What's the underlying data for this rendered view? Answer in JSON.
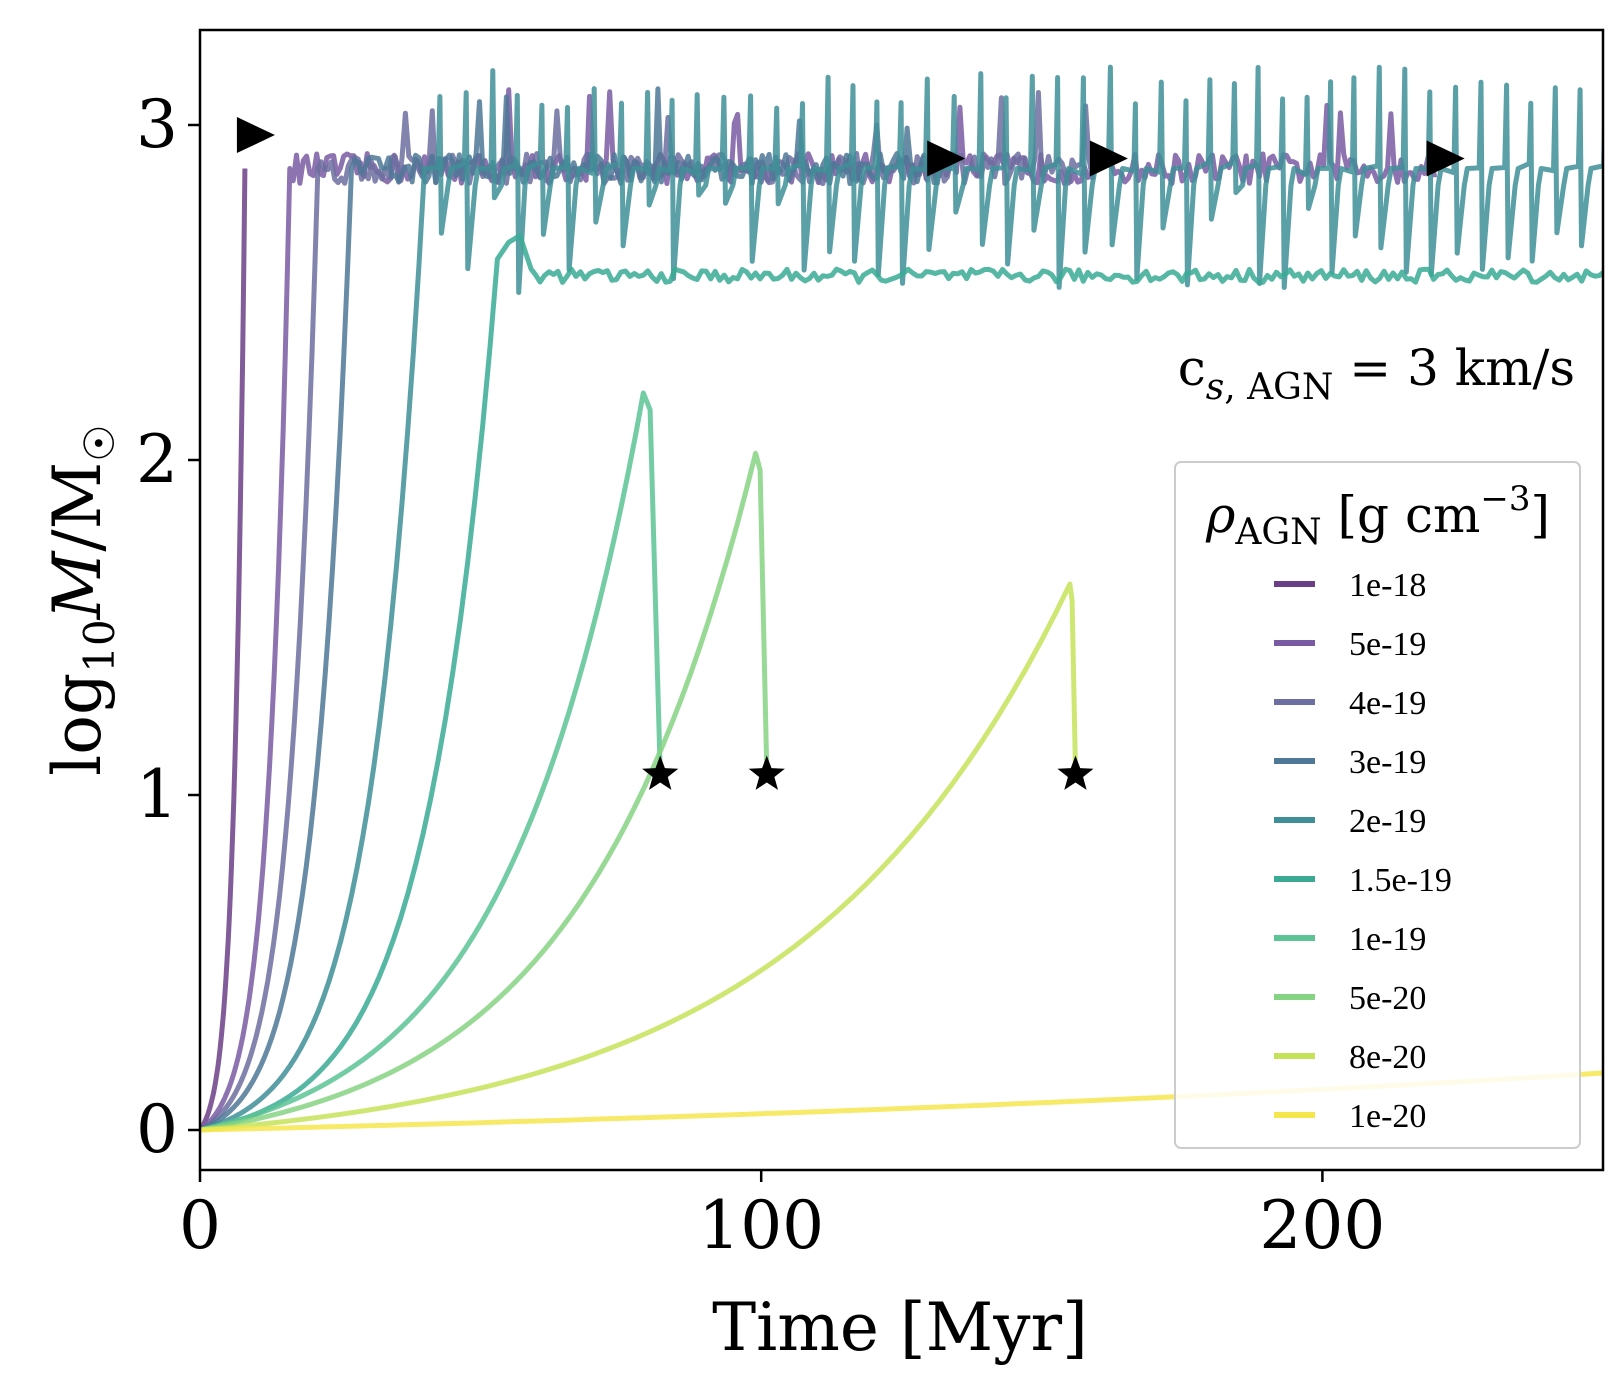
{
  "chart_data": {
    "type": "line",
    "xlabel": "Time [Myr]",
    "ylabel": "log10 M/M☉",
    "ylabel_parts": {
      "main": "log",
      "sub": "10",
      "var": "M",
      "slash": "/M",
      "sun": "☉"
    },
    "xlim": [
      0,
      250
    ],
    "ylim": [
      -0.1,
      3.3
    ],
    "xticks": [
      0,
      100,
      200
    ],
    "yticks": [
      0,
      1,
      2,
      3
    ],
    "grid": false,
    "annotation": {
      "c": "c",
      "sub_s": "s",
      "sub_comma": ", ",
      "sub_agn": "AGN",
      "eq": " = 3 km/s"
    },
    "legend": {
      "placement": "lower-right",
      "title_rho": "ρ",
      "title_sub": "AGN",
      "title_unit": " [g cm",
      "title_exp": "−3",
      "title_close": "]"
    },
    "series": [
      {
        "name": "1e-18",
        "color": "#6b3f87",
        "rise_t": 8,
        "behavior": "saturate",
        "plateau": 2.87,
        "rise_k": 1.6,
        "end_t": 8,
        "end_marker": "triangle"
      },
      {
        "name": "5e-19",
        "color": "#7a5aa3",
        "rise_t": 16,
        "behavior": "saturate",
        "plateau": 2.87,
        "rise_k": 1.2,
        "end_t": 220,
        "end_marker": "triangle"
      },
      {
        "name": "4e-19",
        "color": "#6c6fa0",
        "rise_t": 21,
        "behavior": "saturate",
        "plateau": 2.87,
        "rise_k": 1.0,
        "end_t": 160,
        "end_marker": "triangle"
      },
      {
        "name": "3e-19",
        "color": "#4f7896",
        "rise_t": 27,
        "behavior": "saturate",
        "plateau": 2.87,
        "rise_k": 0.9,
        "end_t": 131,
        "end_marker": "triangle"
      },
      {
        "name": "2e-19",
        "color": "#3f8f98",
        "rise_t": 40,
        "behavior": "oscillate",
        "plateau": 2.87,
        "rise_k": 0.8,
        "end_t": 250,
        "end_marker": "none"
      },
      {
        "name": "1.5e-19",
        "color": "#3aaa95",
        "rise_t": 53,
        "behavior": "low-plateau",
        "plateau": 2.55,
        "rise_k": 0.7,
        "end_t": 250,
        "end_marker": "none"
      },
      {
        "name": "1e-19",
        "color": "#5cc395",
        "peak_t": 79,
        "peak_m": 2.2,
        "behavior": "peak-drop",
        "drop_t": 82,
        "end_m": 1.07,
        "end_marker": "star"
      },
      {
        "name": "5e-20",
        "color": "#86d483",
        "peak_t": 99,
        "peak_m": 2.02,
        "behavior": "peak-drop",
        "drop_t": 101,
        "end_m": 1.07,
        "end_marker": "star"
      },
      {
        "name": "8e-20",
        "color": "#c5e35a",
        "peak_t": 155,
        "peak_m": 1.63,
        "behavior": "peak-drop",
        "drop_t": 156,
        "end_m": 1.07,
        "end_marker": "star"
      },
      {
        "name": "1e-20",
        "color": "#f6e64e",
        "behavior": "slow",
        "end_t": 250,
        "end_m": 0.17,
        "end_marker": "none"
      }
    ]
  }
}
